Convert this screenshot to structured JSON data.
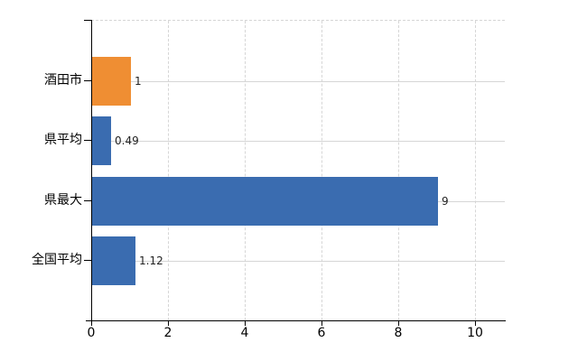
{
  "chart_data": {
    "type": "bar",
    "orientation": "horizontal",
    "title": "",
    "xlabel": "",
    "ylabel": "",
    "categories": [
      "酒田市",
      "県平均",
      "県最大",
      "全国平均"
    ],
    "values": [
      1,
      0.49,
      9,
      1.12
    ],
    "value_labels": [
      "1",
      "0.49",
      "9",
      "1.12"
    ],
    "bar_colors": [
      "#ef8e33",
      "#3a6cb0",
      "#3a6cb0",
      "#3a6cb0"
    ],
    "x_ticks": [
      "0",
      "2",
      "4",
      "6",
      "8",
      "10"
    ],
    "x_tick_values": [
      0,
      2,
      4,
      6,
      8,
      10
    ],
    "xlim": [
      0,
      10.78
    ],
    "grid": true,
    "legend": false,
    "colors": {
      "highlight_bar": "#ef8e33",
      "default_bar": "#3a6cb0",
      "gridline": "#d6d6d6",
      "axis": "#000000",
      "value_text": "#222222",
      "label_text": "#000000",
      "background": "#ffffff"
    }
  }
}
